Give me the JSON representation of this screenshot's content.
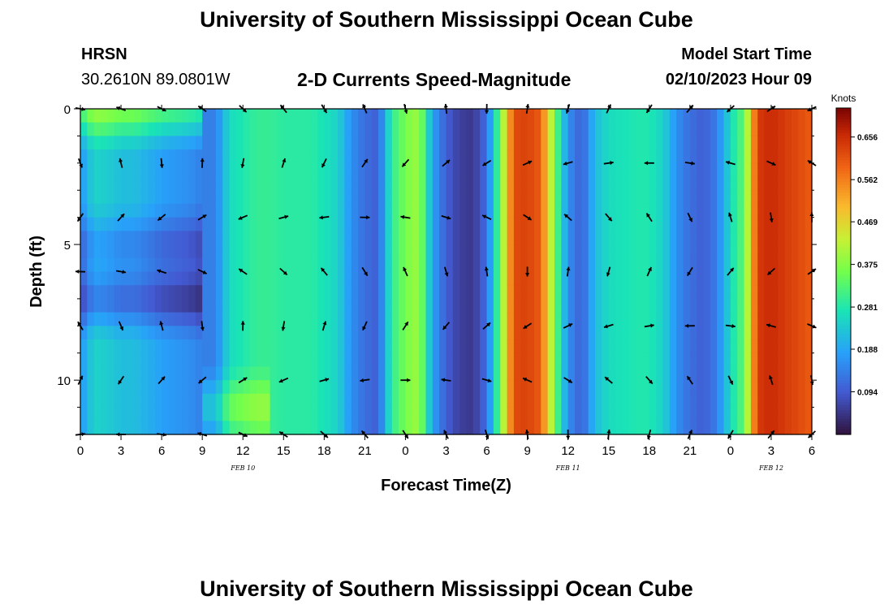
{
  "page": {
    "title": "University of Southern Mississippi Ocean Cube",
    "station": "HRSN",
    "coords": "30.2610N  89.0801W",
    "subtitle": "2-D Currents Speed-Magnitude",
    "model_start_label": "Model Start Time",
    "model_start": "02/10/2023 Hour 09",
    "footer_title": "University of Southern Mississippi Ocean Cube"
  },
  "chart_data": {
    "type": "heatmap",
    "title": "2-D Currents Speed-Magnitude",
    "xlabel": "Forecast Time(Z)",
    "ylabel": "Depth (ft)",
    "colorbar_label": "Knots",
    "x_ticks": [
      "0",
      "3",
      "6",
      "9",
      "12",
      "15",
      "18",
      "21",
      "0",
      "3",
      "6",
      "9",
      "12",
      "15",
      "18",
      "21",
      "0",
      "3",
      "6"
    ],
    "x_range_hours": [
      0,
      54
    ],
    "date_labels": [
      {
        "label": "FEB 10",
        "hour": 12
      },
      {
        "label": "FEB 11",
        "hour": 36
      },
      {
        "label": "FEB 12",
        "hour": 51
      }
    ],
    "y_ticks": [
      "0",
      "5",
      "10"
    ],
    "y_range": [
      0,
      12
    ],
    "y_inverted": true,
    "colorbar_ticks": [
      "0.656",
      "0.562",
      "0.469",
      "0.375",
      "0.281",
      "0.188",
      "0.094"
    ],
    "colorbar_range": [
      0.0,
      0.72
    ],
    "speed_profile": {
      "hours": [
        0,
        1,
        2,
        3,
        4,
        5,
        6,
        7,
        8,
        9,
        10,
        11,
        12,
        13,
        14,
        15,
        16,
        17,
        18,
        19,
        20,
        21,
        22,
        23,
        24,
        25,
        26,
        27,
        28,
        29,
        30,
        31,
        32,
        33,
        34,
        35,
        36,
        37,
        38,
        39,
        40,
        41,
        42,
        43,
        44,
        45,
        46,
        47,
        48,
        49,
        50,
        51,
        52,
        53,
        54
      ],
      "speed_kt": [
        0.17,
        0.25,
        0.24,
        0.22,
        0.22,
        0.2,
        0.18,
        0.17,
        0.16,
        0.14,
        0.14,
        0.26,
        0.28,
        0.3,
        0.3,
        0.29,
        0.29,
        0.29,
        0.27,
        0.25,
        0.16,
        0.12,
        0.1,
        0.3,
        0.36,
        0.4,
        0.18,
        0.1,
        0.06,
        0.05,
        0.12,
        0.35,
        0.62,
        0.63,
        0.6,
        0.36,
        0.16,
        0.1,
        0.22,
        0.26,
        0.27,
        0.28,
        0.28,
        0.25,
        0.16,
        0.12,
        0.1,
        0.14,
        0.26,
        0.34,
        0.64,
        0.66,
        0.64,
        0.62,
        0.6
      ]
    },
    "depth_modifiers": [
      {
        "depth_ft": 0,
        "x_from_hour": 0,
        "x_to_hour": 9,
        "delta_kt": 0.16
      },
      {
        "depth_ft": 5,
        "x_from_hour": 0,
        "x_to_hour": 9,
        "delta_kt": -0.08
      },
      {
        "depth_ft": 7,
        "x_from_hour": 0,
        "x_to_hour": 9,
        "delta_kt": -0.12
      },
      {
        "depth_ft": 11,
        "x_from_hour": 9,
        "x_to_hour": 14,
        "delta_kt": 0.1
      }
    ]
  }
}
